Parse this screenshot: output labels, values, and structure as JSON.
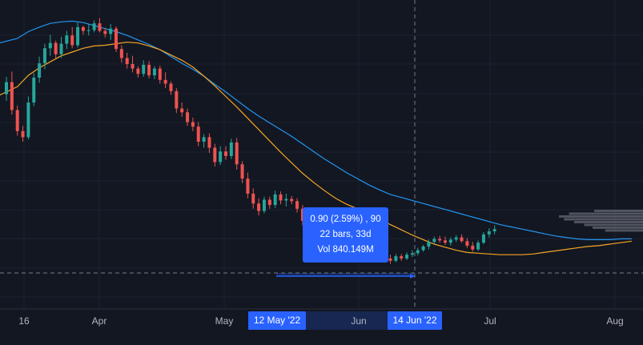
{
  "chart_data": {
    "type": "candlestick",
    "title": "",
    "xlabel": "",
    "ylabel": "",
    "x_ticks": [
      "16",
      "Apr",
      "May",
      "Jun",
      "Jul",
      "Aug"
    ],
    "grid": true,
    "candles": [
      {
        "o": 50.5,
        "h": 52.8,
        "l": 49.6,
        "c": 52.1
      },
      {
        "o": 52.1,
        "h": 53.5,
        "l": 47.8,
        "c": 48.4
      },
      {
        "o": 48.4,
        "h": 49.0,
        "l": 45.0,
        "c": 45.6
      },
      {
        "o": 45.6,
        "h": 46.3,
        "l": 44.2,
        "c": 44.8
      },
      {
        "o": 44.8,
        "h": 50.2,
        "l": 44.5,
        "c": 49.4
      },
      {
        "o": 49.4,
        "h": 53.3,
        "l": 48.9,
        "c": 52.7
      },
      {
        "o": 52.7,
        "h": 55.5,
        "l": 52.0,
        "c": 54.6
      },
      {
        "o": 54.6,
        "h": 57.2,
        "l": 53.8,
        "c": 56.6
      },
      {
        "o": 56.6,
        "h": 58.4,
        "l": 55.6,
        "c": 57.3
      },
      {
        "o": 57.3,
        "h": 57.6,
        "l": 55.2,
        "c": 55.8
      },
      {
        "o": 55.8,
        "h": 58.1,
        "l": 55.3,
        "c": 57.2
      },
      {
        "o": 57.2,
        "h": 58.9,
        "l": 56.5,
        "c": 58.3
      },
      {
        "o": 58.3,
        "h": 59.4,
        "l": 56.6,
        "c": 57.0
      },
      {
        "o": 57.0,
        "h": 60.0,
        "l": 56.7,
        "c": 59.4
      },
      {
        "o": 59.4,
        "h": 59.6,
        "l": 58.4,
        "c": 58.9
      },
      {
        "o": 58.9,
        "h": 59.8,
        "l": 58.3,
        "c": 59.0
      },
      {
        "o": 59.0,
        "h": 60.3,
        "l": 58.7,
        "c": 59.9
      },
      {
        "o": 59.9,
        "h": 60.6,
        "l": 58.7,
        "c": 58.9
      },
      {
        "o": 58.9,
        "h": 59.3,
        "l": 58.0,
        "c": 58.5
      },
      {
        "o": 58.5,
        "h": 59.8,
        "l": 57.7,
        "c": 59.2
      },
      {
        "o": 59.2,
        "h": 59.5,
        "l": 56.1,
        "c": 56.5
      },
      {
        "o": 56.5,
        "h": 57.0,
        "l": 54.7,
        "c": 55.3
      },
      {
        "o": 55.3,
        "h": 56.0,
        "l": 53.9,
        "c": 54.5
      },
      {
        "o": 54.5,
        "h": 55.6,
        "l": 53.4,
        "c": 53.9
      },
      {
        "o": 53.9,
        "h": 54.2,
        "l": 52.7,
        "c": 53.2
      },
      {
        "o": 53.2,
        "h": 55.0,
        "l": 52.8,
        "c": 54.4
      },
      {
        "o": 54.4,
        "h": 54.9,
        "l": 52.6,
        "c": 53.0
      },
      {
        "o": 53.0,
        "h": 54.2,
        "l": 52.5,
        "c": 53.9
      },
      {
        "o": 53.9,
        "h": 54.3,
        "l": 51.9,
        "c": 52.4
      },
      {
        "o": 52.4,
        "h": 53.4,
        "l": 51.3,
        "c": 51.9
      },
      {
        "o": 51.9,
        "h": 52.2,
        "l": 50.4,
        "c": 50.9
      },
      {
        "o": 50.9,
        "h": 51.3,
        "l": 48.0,
        "c": 48.6
      },
      {
        "o": 48.6,
        "h": 49.4,
        "l": 47.5,
        "c": 48.1
      },
      {
        "o": 48.1,
        "h": 48.6,
        "l": 46.3,
        "c": 46.8
      },
      {
        "o": 46.8,
        "h": 47.4,
        "l": 45.6,
        "c": 46.2
      },
      {
        "o": 46.2,
        "h": 46.8,
        "l": 43.6,
        "c": 44.2
      },
      {
        "o": 44.2,
        "h": 45.2,
        "l": 43.4,
        "c": 44.8
      },
      {
        "o": 44.8,
        "h": 45.3,
        "l": 42.7,
        "c": 43.4
      },
      {
        "o": 43.4,
        "h": 43.9,
        "l": 40.9,
        "c": 41.5
      },
      {
        "o": 41.5,
        "h": 43.6,
        "l": 41.1,
        "c": 42.9
      },
      {
        "o": 42.9,
        "h": 43.6,
        "l": 41.8,
        "c": 42.3
      },
      {
        "o": 42.3,
        "h": 44.6,
        "l": 41.9,
        "c": 44.1
      },
      {
        "o": 44.1,
        "h": 44.7,
        "l": 40.5,
        "c": 41.2
      },
      {
        "o": 41.2,
        "h": 41.6,
        "l": 38.7,
        "c": 39.3
      },
      {
        "o": 39.3,
        "h": 40.1,
        "l": 36.7,
        "c": 37.3
      },
      {
        "o": 37.3,
        "h": 38.0,
        "l": 35.3,
        "c": 36.0
      },
      {
        "o": 36.0,
        "h": 36.7,
        "l": 34.4,
        "c": 35.0
      },
      {
        "o": 35.0,
        "h": 36.9,
        "l": 34.7,
        "c": 36.5
      },
      {
        "o": 36.5,
        "h": 36.9,
        "l": 35.3,
        "c": 35.8
      },
      {
        "o": 35.8,
        "h": 37.7,
        "l": 35.4,
        "c": 37.2
      },
      {
        "o": 37.2,
        "h": 37.6,
        "l": 35.9,
        "c": 36.4
      },
      {
        "o": 36.4,
        "h": 37.3,
        "l": 35.6,
        "c": 36.6
      },
      {
        "o": 36.6,
        "h": 37.0,
        "l": 35.9,
        "c": 36.3
      },
      {
        "o": 36.3,
        "h": 36.7,
        "l": 34.8,
        "c": 35.3
      },
      {
        "o": 35.3,
        "h": 35.8,
        "l": 33.1,
        "c": 33.7
      },
      {
        "o": 33.7,
        "h": 34.2,
        "l": 32.3,
        "c": 32.8
      },
      {
        "o": 32.8,
        "h": 33.3,
        "l": 31.0,
        "c": 31.6
      },
      {
        "o": 31.6,
        "h": 31.9,
        "l": 30.5,
        "c": 30.9
      },
      {
        "o": 30.9,
        "h": 31.8,
        "l": 30.3,
        "c": 30.9
      },
      {
        "o": 30.9,
        "h": 32.0,
        "l": 30.5,
        "c": 31.7
      },
      {
        "o": 31.7,
        "h": 31.9,
        "l": 30.8,
        "c": 31.3
      },
      {
        "o": 31.3,
        "h": 32.3,
        "l": 30.9,
        "c": 31.9
      },
      {
        "o": 31.9,
        "h": 32.4,
        "l": 31.1,
        "c": 31.5
      },
      {
        "o": 31.5,
        "h": 32.1,
        "l": 30.6,
        "c": 31.2
      },
      {
        "o": 31.2,
        "h": 32.0,
        "l": 30.8,
        "c": 31.6
      },
      {
        "o": 31.6,
        "h": 32.1,
        "l": 30.9,
        "c": 31.2
      },
      {
        "o": 31.2,
        "h": 31.8,
        "l": 30.7,
        "c": 31.4
      },
      {
        "o": 31.4,
        "h": 31.7,
        "l": 30.9,
        "c": 31.0
      },
      {
        "o": 31.0,
        "h": 31.4,
        "l": 29.3,
        "c": 29.9
      },
      {
        "o": 29.9,
        "h": 30.3,
        "l": 28.3,
        "c": 28.7
      },
      {
        "o": 28.7,
        "h": 29.2,
        "l": 28.0,
        "c": 28.4
      },
      {
        "o": 28.4,
        "h": 29.3,
        "l": 28.2,
        "c": 29.0
      },
      {
        "o": 29.0,
        "h": 29.3,
        "l": 28.4,
        "c": 28.7
      },
      {
        "o": 28.7,
        "h": 29.5,
        "l": 28.5,
        "c": 29.2
      },
      {
        "o": 29.2,
        "h": 29.8,
        "l": 28.9,
        "c": 29.4
      },
      {
        "o": 29.4,
        "h": 30.1,
        "l": 29.1,
        "c": 29.8
      },
      {
        "o": 29.8,
        "h": 30.5,
        "l": 29.6,
        "c": 30.3
      },
      {
        "o": 30.3,
        "h": 31.2,
        "l": 29.9,
        "c": 30.9
      },
      {
        "o": 30.9,
        "h": 31.6,
        "l": 30.6,
        "c": 31.3
      },
      {
        "o": 31.3,
        "h": 31.7,
        "l": 30.8,
        "c": 31.1
      },
      {
        "o": 31.1,
        "h": 31.6,
        "l": 30.5,
        "c": 30.8
      },
      {
        "o": 30.8,
        "h": 31.5,
        "l": 30.4,
        "c": 31.2
      },
      {
        "o": 31.2,
        "h": 31.8,
        "l": 30.9,
        "c": 31.5
      },
      {
        "o": 31.5,
        "h": 31.9,
        "l": 30.8,
        "c": 31.0
      },
      {
        "o": 31.0,
        "h": 31.4,
        "l": 30.1,
        "c": 30.4
      },
      {
        "o": 30.4,
        "h": 30.9,
        "l": 29.6,
        "c": 29.9
      },
      {
        "o": 29.9,
        "h": 31.1,
        "l": 29.7,
        "c": 30.8
      },
      {
        "o": 30.8,
        "h": 32.2,
        "l": 30.6,
        "c": 31.9
      },
      {
        "o": 31.9,
        "h": 32.7,
        "l": 31.5,
        "c": 32.3
      },
      {
        "o": 32.3,
        "h": 33.1,
        "l": 31.9,
        "c": 32.6
      }
    ],
    "series": [
      {
        "values": [
          57.0,
          57.9,
          58.8,
          59.4,
          59.9,
          60.1,
          60.2,
          60.0,
          59.6,
          59.2,
          58.8,
          58.3,
          57.7,
          57.1,
          56.4,
          55.5,
          54.6,
          53.8,
          52.9,
          51.8,
          50.8,
          49.7,
          48.6,
          47.6,
          46.7,
          45.8,
          44.9,
          43.9,
          42.9,
          41.9,
          41.0,
          40.1,
          39.3,
          38.5,
          37.8,
          37.2,
          36.8,
          36.4,
          36.0,
          35.6,
          35.2,
          34.8,
          34.4,
          34.0,
          33.6,
          33.2,
          32.9,
          32.6,
          32.3,
          32.0,
          31.7,
          31.5,
          31.3,
          31.2,
          31.2,
          31.2,
          31.3,
          31.3
        ]
      },
      {
        "values": [
          49.8,
          51.5,
          53.0,
          54.0,
          54.8,
          55.6,
          56.1,
          56.6,
          56.9,
          57.0,
          57.2,
          57.4,
          57.3,
          56.9,
          56.4,
          55.7,
          55.0,
          54.1,
          52.9,
          51.6,
          50.2,
          48.8,
          47.3,
          45.8,
          44.3,
          42.8,
          41.4,
          40.0,
          38.8,
          37.7,
          36.7,
          35.9,
          35.3,
          34.6,
          34.0,
          33.2,
          32.5,
          31.8,
          31.2,
          30.6,
          30.2,
          29.8,
          29.5,
          29.4,
          29.3,
          29.2,
          29.2,
          29.2,
          29.3,
          29.5,
          29.7,
          29.9,
          30.1,
          30.3,
          30.4,
          30.6,
          30.8,
          31.0
        ]
      }
    ],
    "volume_profile": [
      0.58,
      0.88,
      1.0,
      0.94,
      0.82,
      0.7,
      0.6,
      0.45
    ],
    "measurement": {
      "line1": "0.90 (2.59%) , 90",
      "line2": "22 bars, 33d",
      "line3": "Vol 840.149M"
    },
    "selected_range": {
      "start": "12 May '22",
      "end": "14 Jun '22"
    },
    "colors": {
      "up": "#26a69a",
      "down": "#ef5350",
      "ma_slow": "#2196f3",
      "ma_fast": "#f5a623",
      "accent": "#2962ff",
      "background": "#131722"
    }
  }
}
